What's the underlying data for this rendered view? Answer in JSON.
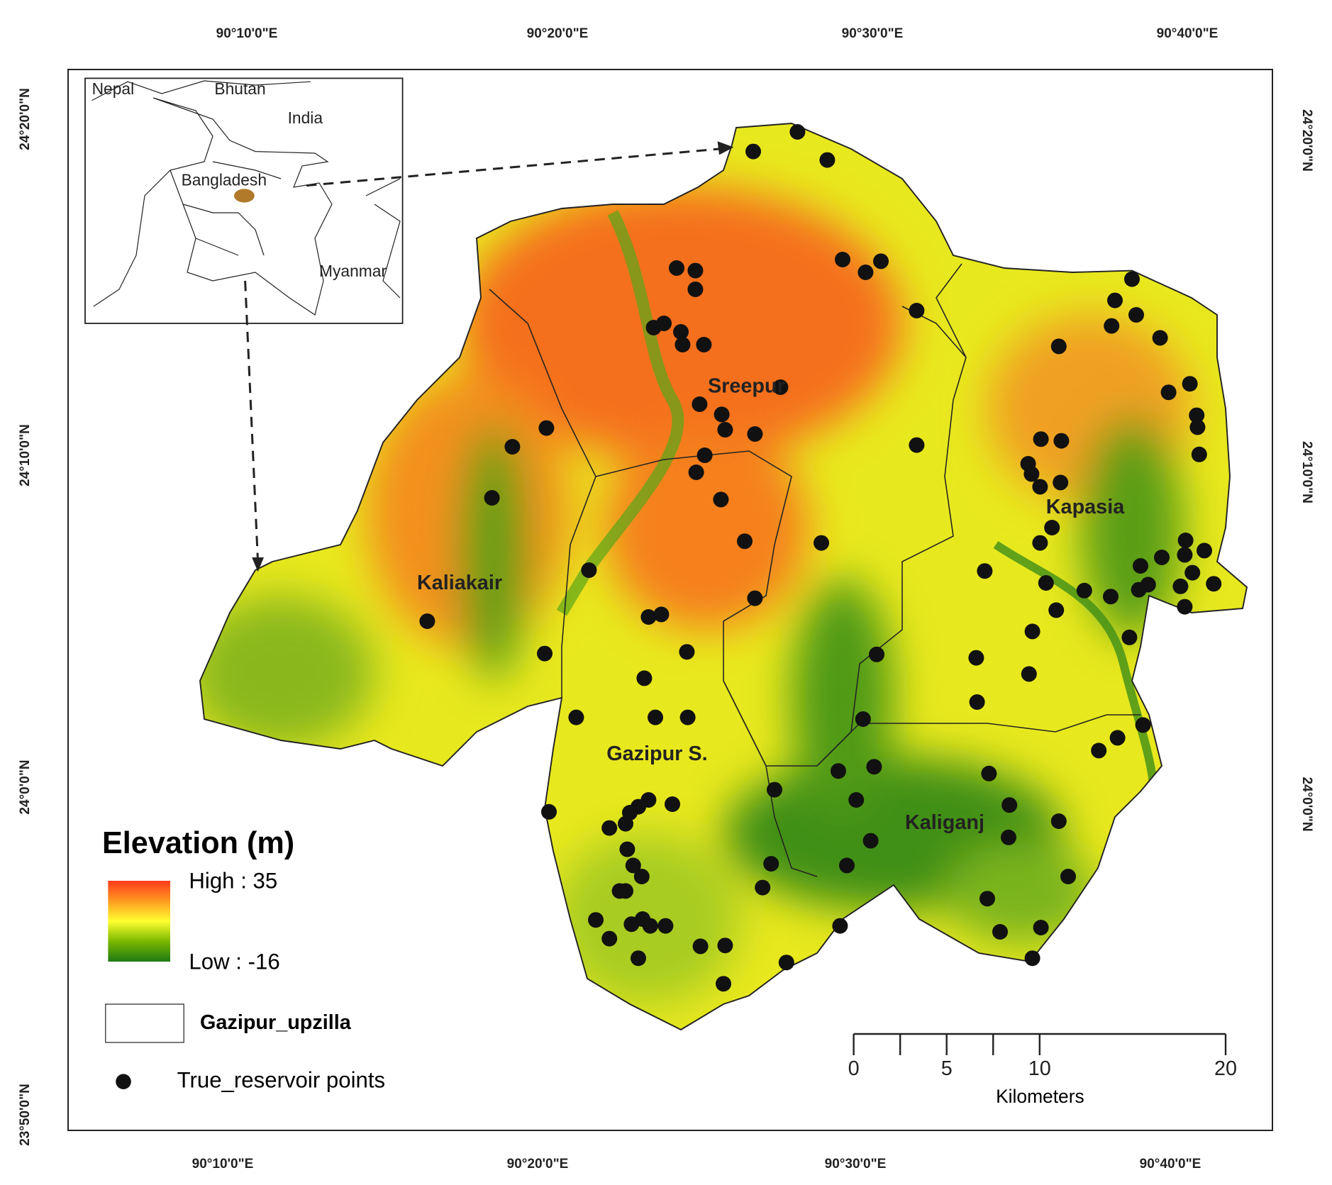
{
  "map": {
    "top_longitude_labels": [
      "90°10'0\"E",
      "90°20'0\"E",
      "90°30'0\"E",
      "90°40'0\"E"
    ],
    "bottom_longitude_labels": [
      "90°10'0\"E",
      "90°20'0\"E",
      "90°30'0\"E",
      "90°40'0\"E"
    ],
    "left_latitude_labels": [
      "24°20'0\"N",
      "24°10'0\"N",
      "24°0'0\"N",
      "23°50'0\"N"
    ],
    "right_latitude_labels": [
      "24°20'0\"N",
      "24°10'0\"N",
      "24°0'0\"N"
    ],
    "inset": {
      "labels": [
        "Nepal",
        "Bhutan",
        "India",
        "Bangladesh",
        "Myanmar"
      ]
    },
    "regions": [
      "Sreepur",
      "Kaliakair",
      "Kapasia",
      "Gazipur S.",
      "Kaliganj"
    ],
    "legend": {
      "title": "Elevation (m)",
      "high": "High : 35",
      "low": "Low : -16",
      "boundary": "Gazipur_upzilla",
      "points": "True_reservoir points"
    },
    "scale_bar": {
      "ticks": [
        0,
        5,
        10,
        20
      ],
      "unit": "Kilometers"
    }
  }
}
